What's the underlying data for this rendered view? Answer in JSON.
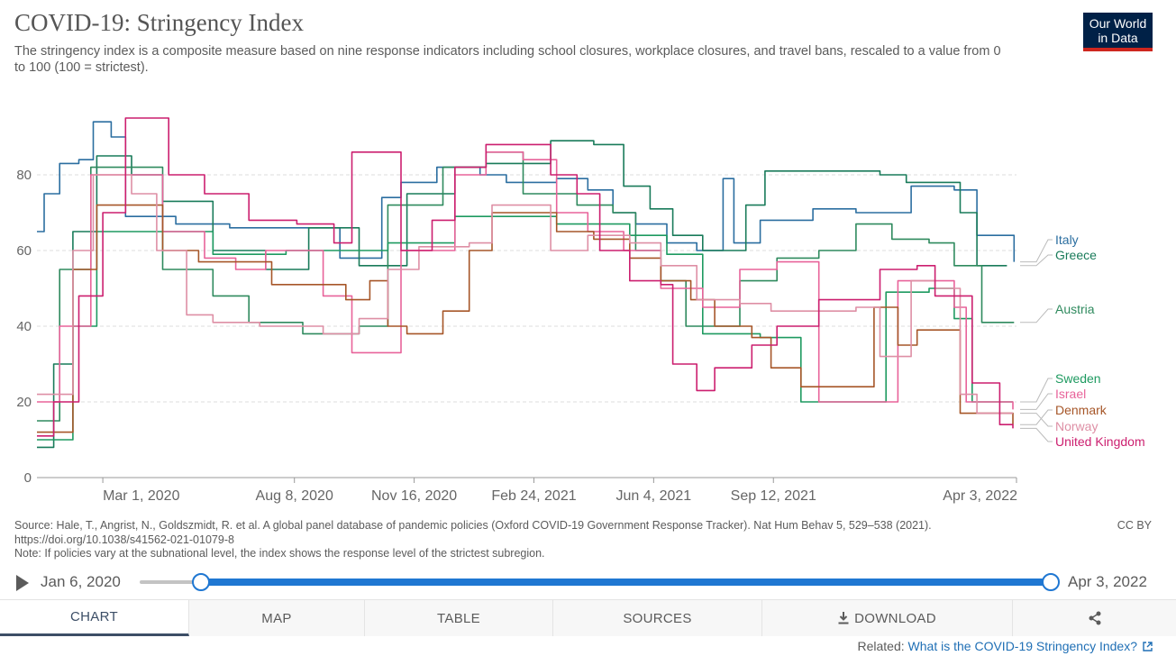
{
  "header": {
    "title": "COVID-19: Stringency Index",
    "subtitle": "The stringency index is a composite measure based on nine response indicators including school closures, workplace closures, and travel bans, rescaled to a value from 0 to 100 (100 = strictest).",
    "logo_line1": "Our World",
    "logo_line2": "in Data"
  },
  "chart_data": {
    "type": "line",
    "xlim": [
      "2020-01-06",
      "2022-04-03"
    ],
    "ylim": [
      0,
      100
    ],
    "y_ticks": [
      0,
      20,
      40,
      60,
      80
    ],
    "x_ticks": [
      {
        "date": "2020-03-01",
        "label": "Mar 1, 2020"
      },
      {
        "date": "2020-08-08",
        "label": "Aug 8, 2020"
      },
      {
        "date": "2020-11-16",
        "label": "Nov 16, 2020"
      },
      {
        "date": "2021-02-24",
        "label": "Feb 24, 2021"
      },
      {
        "date": "2021-06-04",
        "label": "Jun 4, 2021"
      },
      {
        "date": "2021-09-12",
        "label": "Sep 12, 2021"
      },
      {
        "date": "2022-04-03",
        "label": "Apr 3, 2022"
      }
    ],
    "grid": true,
    "legend": "right-end labels",
    "series": [
      {
        "name": "Italy",
        "color": "#2b6ea0",
        "points": [
          [
            "2020-01-06",
            65
          ],
          [
            "2020-01-12",
            75
          ],
          [
            "2020-01-25",
            83
          ],
          [
            "2020-02-10",
            84
          ],
          [
            "2020-02-22",
            94
          ],
          [
            "2020-03-08",
            90
          ],
          [
            "2020-03-20",
            69
          ],
          [
            "2020-05-01",
            67
          ],
          [
            "2020-06-15",
            66
          ],
          [
            "2020-08-01",
            66
          ],
          [
            "2020-09-15",
            58
          ],
          [
            "2020-10-20",
            74
          ],
          [
            "2020-11-05",
            78
          ],
          [
            "2020-12-05",
            82
          ],
          [
            "2021-01-10",
            80
          ],
          [
            "2021-02-01",
            78
          ],
          [
            "2021-03-15",
            79
          ],
          [
            "2021-04-10",
            76
          ],
          [
            "2021-05-01",
            70
          ],
          [
            "2021-05-20",
            67
          ],
          [
            "2021-06-15",
            62
          ],
          [
            "2021-07-10",
            60
          ],
          [
            "2021-08-01",
            79
          ],
          [
            "2021-08-10",
            62
          ],
          [
            "2021-09-01",
            68
          ],
          [
            "2021-10-15",
            71
          ],
          [
            "2021-11-20",
            70
          ],
          [
            "2022-01-05",
            77
          ],
          [
            "2022-02-10",
            76
          ],
          [
            "2022-03-01",
            64
          ],
          [
            "2022-03-31",
            64
          ],
          [
            "2022-04-01",
            57
          ]
        ]
      },
      {
        "name": "Greece",
        "color": "#197b5a",
        "points": [
          [
            "2020-01-06",
            8
          ],
          [
            "2020-01-20",
            30
          ],
          [
            "2020-02-05",
            65
          ],
          [
            "2020-02-25",
            85
          ],
          [
            "2020-03-25",
            80
          ],
          [
            "2020-04-20",
            73
          ],
          [
            "2020-06-01",
            60
          ],
          [
            "2020-07-15",
            55
          ],
          [
            "2020-08-20",
            66
          ],
          [
            "2020-10-01",
            56
          ],
          [
            "2020-11-10",
            75
          ],
          [
            "2020-12-20",
            82
          ],
          [
            "2021-01-15",
            83
          ],
          [
            "2021-02-15",
            83
          ],
          [
            "2021-03-10",
            89
          ],
          [
            "2021-04-15",
            88
          ],
          [
            "2021-05-10",
            77
          ],
          [
            "2021-06-01",
            71
          ],
          [
            "2021-06-20",
            64
          ],
          [
            "2021-07-15",
            60
          ],
          [
            "2021-08-20",
            72
          ],
          [
            "2021-09-05",
            81
          ],
          [
            "2021-10-15",
            81
          ],
          [
            "2021-12-10",
            80
          ],
          [
            "2022-01-01",
            78
          ],
          [
            "2022-02-15",
            70
          ],
          [
            "2022-03-01",
            56
          ],
          [
            "2022-03-26",
            56
          ]
        ]
      },
      {
        "name": "Austria",
        "color": "#2f8a5e",
        "points": [
          [
            "2020-01-06",
            15
          ],
          [
            "2020-01-25",
            55
          ],
          [
            "2020-02-20",
            82
          ],
          [
            "2020-03-20",
            82
          ],
          [
            "2020-04-20",
            55
          ],
          [
            "2020-06-01",
            48
          ],
          [
            "2020-07-01",
            41
          ],
          [
            "2020-08-15",
            38
          ],
          [
            "2020-10-01",
            40
          ],
          [
            "2020-10-25",
            72
          ],
          [
            "2020-12-10",
            82
          ],
          [
            "2021-01-15",
            86
          ],
          [
            "2021-02-15",
            75
          ],
          [
            "2021-04-01",
            72
          ],
          [
            "2021-05-01",
            70
          ],
          [
            "2021-05-20",
            60
          ],
          [
            "2021-06-10",
            52
          ],
          [
            "2021-07-01",
            40
          ],
          [
            "2021-08-15",
            52
          ],
          [
            "2021-09-15",
            58
          ],
          [
            "2021-10-20",
            60
          ],
          [
            "2021-11-20",
            67
          ],
          [
            "2021-12-20",
            63
          ],
          [
            "2022-01-20",
            62
          ],
          [
            "2022-02-10",
            56
          ],
          [
            "2022-03-05",
            41
          ],
          [
            "2022-04-01",
            41
          ]
        ]
      },
      {
        "name": "Sweden",
        "color": "#1e9a60",
        "points": [
          [
            "2020-01-06",
            10
          ],
          [
            "2020-02-05",
            40
          ],
          [
            "2020-02-25",
            65
          ],
          [
            "2020-04-01",
            65
          ],
          [
            "2020-06-01",
            59
          ],
          [
            "2020-08-01",
            60
          ],
          [
            "2020-09-15",
            60
          ],
          [
            "2020-10-25",
            62
          ],
          [
            "2020-12-20",
            69
          ],
          [
            "2021-01-15",
            69
          ],
          [
            "2021-03-15",
            67
          ],
          [
            "2021-05-15",
            64
          ],
          [
            "2021-06-15",
            59
          ],
          [
            "2021-07-15",
            38
          ],
          [
            "2021-09-01",
            37
          ],
          [
            "2021-10-05",
            20
          ],
          [
            "2021-12-01",
            20
          ],
          [
            "2021-12-15",
            49
          ],
          [
            "2022-01-20",
            50
          ],
          [
            "2022-02-10",
            42
          ],
          [
            "2022-02-25",
            20
          ],
          [
            "2022-03-31",
            20
          ]
        ]
      },
      {
        "name": "Israel",
        "color": "#e8639a",
        "points": [
          [
            "2020-01-06",
            20
          ],
          [
            "2020-01-25",
            40
          ],
          [
            "2020-02-20",
            80
          ],
          [
            "2020-04-01",
            80
          ],
          [
            "2020-04-20",
            65
          ],
          [
            "2020-05-25",
            58
          ],
          [
            "2020-06-20",
            55
          ],
          [
            "2020-07-15",
            60
          ],
          [
            "2020-09-01",
            48
          ],
          [
            "2020-09-25",
            33
          ],
          [
            "2020-10-20",
            33
          ],
          [
            "2020-11-05",
            60
          ],
          [
            "2020-12-20",
            80
          ],
          [
            "2021-01-15",
            86
          ],
          [
            "2021-02-15",
            84
          ],
          [
            "2021-03-15",
            70
          ],
          [
            "2021-04-10",
            65
          ],
          [
            "2021-05-10",
            60
          ],
          [
            "2021-06-10",
            50
          ],
          [
            "2021-07-15",
            45
          ],
          [
            "2021-08-15",
            55
          ],
          [
            "2021-09-15",
            57
          ],
          [
            "2021-10-20",
            20
          ],
          [
            "2021-12-01",
            20
          ],
          [
            "2021-12-25",
            52
          ],
          [
            "2022-01-20",
            52
          ],
          [
            "2022-02-10",
            45
          ],
          [
            "2022-02-20",
            20
          ],
          [
            "2022-03-31",
            18
          ]
        ]
      },
      {
        "name": "Denmark",
        "color": "#a65628",
        "points": [
          [
            "2020-01-06",
            12
          ],
          [
            "2020-02-05",
            55
          ],
          [
            "2020-02-25",
            72
          ],
          [
            "2020-03-25",
            72
          ],
          [
            "2020-04-20",
            60
          ],
          [
            "2020-05-20",
            57
          ],
          [
            "2020-07-01",
            57
          ],
          [
            "2020-07-20",
            51
          ],
          [
            "2020-08-25",
            51
          ],
          [
            "2020-09-20",
            47
          ],
          [
            "2020-10-10",
            52
          ],
          [
            "2020-10-25",
            40
          ],
          [
            "2020-11-10",
            38
          ],
          [
            "2020-12-10",
            44
          ],
          [
            "2021-01-01",
            60
          ],
          [
            "2021-01-20",
            70
          ],
          [
            "2021-02-15",
            70
          ],
          [
            "2021-03-15",
            65
          ],
          [
            "2021-04-15",
            63
          ],
          [
            "2021-05-15",
            58
          ],
          [
            "2021-06-10",
            52
          ],
          [
            "2021-07-05",
            47
          ],
          [
            "2021-07-25",
            40
          ],
          [
            "2021-08-25",
            37
          ],
          [
            "2021-09-10",
            29
          ],
          [
            "2021-10-05",
            24
          ],
          [
            "2021-11-20",
            24
          ],
          [
            "2021-12-05",
            45
          ],
          [
            "2021-12-25",
            35
          ],
          [
            "2022-01-10",
            39
          ],
          [
            "2022-01-25",
            39
          ],
          [
            "2022-02-15",
            17
          ],
          [
            "2022-03-31",
            14
          ]
        ]
      },
      {
        "name": "Norway",
        "color": "#de8fa5",
        "points": [
          [
            "2020-01-06",
            22
          ],
          [
            "2020-02-05",
            60
          ],
          [
            "2020-02-22",
            80
          ],
          [
            "2020-03-25",
            75
          ],
          [
            "2020-04-15",
            60
          ],
          [
            "2020-05-10",
            43
          ],
          [
            "2020-06-01",
            41
          ],
          [
            "2020-07-10",
            40
          ],
          [
            "2020-09-01",
            38
          ],
          [
            "2020-10-01",
            42
          ],
          [
            "2020-10-25",
            55
          ],
          [
            "2020-11-20",
            61
          ],
          [
            "2021-01-01",
            62
          ],
          [
            "2021-01-20",
            72
          ],
          [
            "2021-02-15",
            72
          ],
          [
            "2021-03-10",
            60
          ],
          [
            "2021-04-10",
            64
          ],
          [
            "2021-05-15",
            62
          ],
          [
            "2021-06-10",
            56
          ],
          [
            "2021-07-10",
            47
          ],
          [
            "2021-08-15",
            46
          ],
          [
            "2021-09-10",
            44
          ],
          [
            "2021-10-05",
            44
          ],
          [
            "2021-11-20",
            45
          ],
          [
            "2021-12-10",
            32
          ],
          [
            "2022-01-05",
            52
          ],
          [
            "2022-01-25",
            50
          ],
          [
            "2022-02-15",
            22
          ],
          [
            "2022-03-01",
            17
          ],
          [
            "2022-03-31",
            17
          ]
        ]
      },
      {
        "name": "United Kingdom",
        "color": "#cc1f6f",
        "points": [
          [
            "2020-01-06",
            11
          ],
          [
            "2020-01-20",
            20
          ],
          [
            "2020-02-10",
            48
          ],
          [
            "2020-03-01",
            70
          ],
          [
            "2020-03-20",
            95
          ],
          [
            "2020-04-25",
            80
          ],
          [
            "2020-05-25",
            75
          ],
          [
            "2020-07-01",
            68
          ],
          [
            "2020-08-10",
            67
          ],
          [
            "2020-09-10",
            62
          ],
          [
            "2020-09-25",
            86
          ],
          [
            "2020-10-25",
            86
          ],
          [
            "2020-11-05",
            60
          ],
          [
            "2020-12-01",
            68
          ],
          [
            "2020-12-20",
            82
          ],
          [
            "2021-01-15",
            88
          ],
          [
            "2021-02-15",
            88
          ],
          [
            "2021-03-10",
            80
          ],
          [
            "2021-04-01",
            75
          ],
          [
            "2021-04-20",
            60
          ],
          [
            "2021-05-15",
            52
          ],
          [
            "2021-06-10",
            51
          ],
          [
            "2021-06-20",
            30
          ],
          [
            "2021-07-10",
            23
          ],
          [
            "2021-07-25",
            29
          ],
          [
            "2021-08-25",
            35
          ],
          [
            "2021-09-15",
            40
          ],
          [
            "2021-10-20",
            47
          ],
          [
            "2021-11-25",
            47
          ],
          [
            "2021-12-10",
            55
          ],
          [
            "2022-01-10",
            56
          ],
          [
            "2022-01-25",
            48
          ],
          [
            "2022-02-10",
            48
          ],
          [
            "2022-02-25",
            25
          ],
          [
            "2022-03-20",
            14
          ],
          [
            "2022-03-31",
            13
          ]
        ]
      }
    ],
    "end_labels": [
      "Italy",
      "Greece",
      "Austria",
      "Sweden",
      "Israel",
      "Denmark",
      "Norway",
      "United Kingdom"
    ]
  },
  "footer": {
    "source_line1": "Source: Hale, T., Angrist, N., Goldszmidt, R. et al. A global panel database of pandemic policies (Oxford COVID-19 Government Response Tracker). Nat Hum Behav 5, 529–538 (2021).",
    "source_line2": "https://doi.org/10.1038/s41562-021-01079-8",
    "note": "Note: If policies vary at the subnational level, the index shows the response level of the strictest subregion.",
    "license": "CC BY"
  },
  "timeline": {
    "start_label": "Jan 6, 2020",
    "end_label": "Apr 3, 2022",
    "range_start": 0.066,
    "range_end": 1.0
  },
  "tabs": [
    {
      "label": "CHART",
      "active": true
    },
    {
      "label": "MAP"
    },
    {
      "label": "TABLE"
    },
    {
      "label": "SOURCES"
    },
    {
      "label": "DOWNLOAD",
      "icon": "download-icon"
    },
    {
      "label": "",
      "icon": "share-icon"
    }
  ],
  "related": {
    "prefix": "Related:",
    "link_text": "What is the COVID-19 Stringency Index?"
  }
}
